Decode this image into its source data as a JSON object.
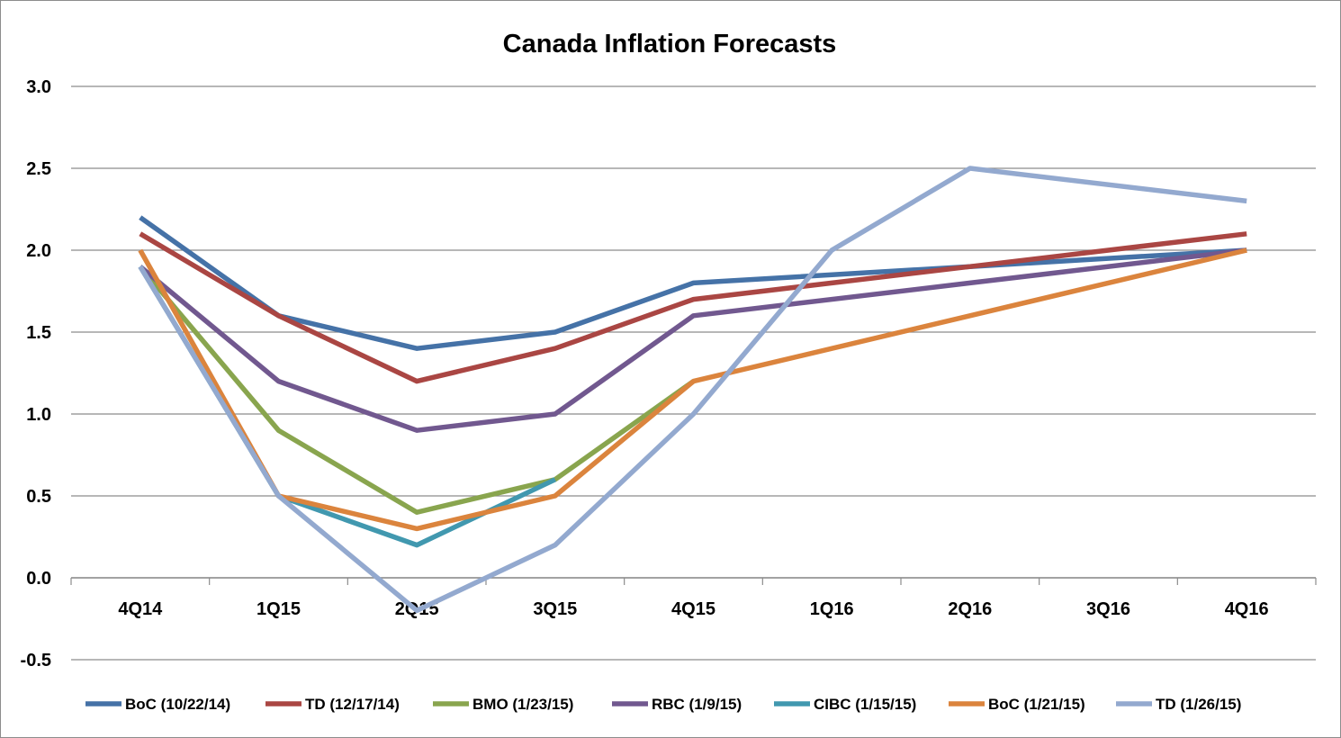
{
  "chart_data": {
    "type": "line",
    "title": "Canada Inflation Forecasts",
    "xlabel": "",
    "ylabel": "",
    "categories": [
      "4Q14",
      "1Q15",
      "2Q15",
      "3Q15",
      "4Q15",
      "1Q16",
      "2Q16",
      "3Q16",
      "4Q16"
    ],
    "ylim": [
      -0.5,
      3.0
    ],
    "yticks": [
      3.0,
      2.5,
      2.0,
      1.5,
      1.0,
      0.5,
      0.0,
      -0.5
    ],
    "ytick_labels": [
      "3.0",
      "2.5",
      "2.0",
      "1.5",
      "1.0",
      "0.5",
      "0.0",
      "-0.5"
    ],
    "grid": true,
    "legend_position": "bottom",
    "series": [
      {
        "name": "BoC (10/22/14)",
        "color": "#4572A7",
        "values": [
          2.2,
          1.6,
          1.4,
          1.5,
          1.8,
          null,
          1.9,
          null,
          2.0
        ]
      },
      {
        "name": "TD (12/17/14)",
        "color": "#AA4643",
        "values": [
          2.1,
          1.6,
          1.2,
          1.4,
          1.7,
          null,
          1.9,
          null,
          2.1
        ]
      },
      {
        "name": "BMO (1/23/15)",
        "color": "#89A54E",
        "values": [
          1.9,
          0.9,
          0.4,
          0.6,
          1.2,
          null,
          null,
          null,
          null
        ]
      },
      {
        "name": "RBC (1/9/15)",
        "color": "#71588F",
        "values": [
          1.9,
          1.2,
          0.9,
          1.0,
          1.6,
          null,
          1.8,
          null,
          2.0
        ]
      },
      {
        "name": "CIBC (1/15/15)",
        "color": "#4198AF",
        "values": [
          1.9,
          0.5,
          0.2,
          0.6,
          null,
          null,
          null,
          null,
          null
        ]
      },
      {
        "name": "BoC (1/21/15)",
        "color": "#DB843D",
        "values": [
          2.0,
          0.5,
          0.3,
          0.5,
          1.2,
          null,
          null,
          null,
          2.0
        ]
      },
      {
        "name": "TD (1/26/15)",
        "color": "#93A9CF",
        "values": [
          1.9,
          0.5,
          -0.2,
          0.2,
          1.0,
          2.0,
          2.5,
          null,
          2.3
        ]
      }
    ]
  }
}
